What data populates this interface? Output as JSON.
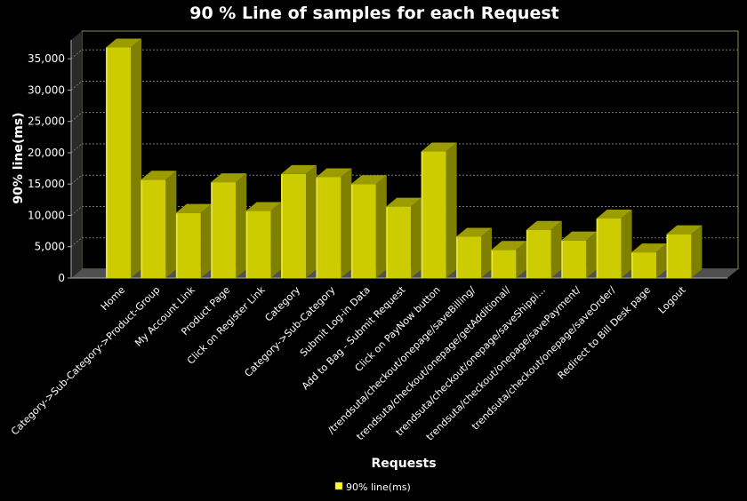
{
  "chart_data": {
    "type": "bar",
    "title": "90 % Line of samples for each Request",
    "xlabel": "Requests",
    "ylabel": "90% line(ms)",
    "ylim": [
      0,
      38000
    ],
    "yticks": [
      0,
      5000,
      10000,
      15000,
      20000,
      25000,
      30000,
      35000
    ],
    "ytick_labels": [
      "0",
      "5,000",
      "10,000",
      "15,000",
      "20,000",
      "25,000",
      "30,000",
      "35,000"
    ],
    "grid": true,
    "legend_position": "bottom",
    "bar_color": "#cccc00",
    "categories": [
      "Home",
      "Category->Sub-Category->Product-Group",
      "My Account Link",
      "Product Page",
      "Click on Register Link",
      "Category",
      "Category->Sub-Category",
      "Submit Log-in Data",
      "Add to Bag - Submit Request",
      "Click on PayNow button",
      "/trendsuta/checkout/onepage/saveBilling/",
      "trendsuta/checkout/onepage/getAdditional/",
      "trendsuta/checkout/onepage/saveShippi...",
      "trendsuta/checkout/onepage/savePayment/",
      "trendsuta/checkout/onepage/saveOrder/",
      "Redirect to Bill Desk page",
      "Logout"
    ],
    "series": [
      {
        "name": "90% line(ms)",
        "values": [
          36800,
          15700,
          10400,
          15300,
          10700,
          16600,
          16100,
          15000,
          11400,
          20200,
          6600,
          4500,
          7700,
          6000,
          9500,
          4100,
          7000
        ]
      }
    ]
  }
}
